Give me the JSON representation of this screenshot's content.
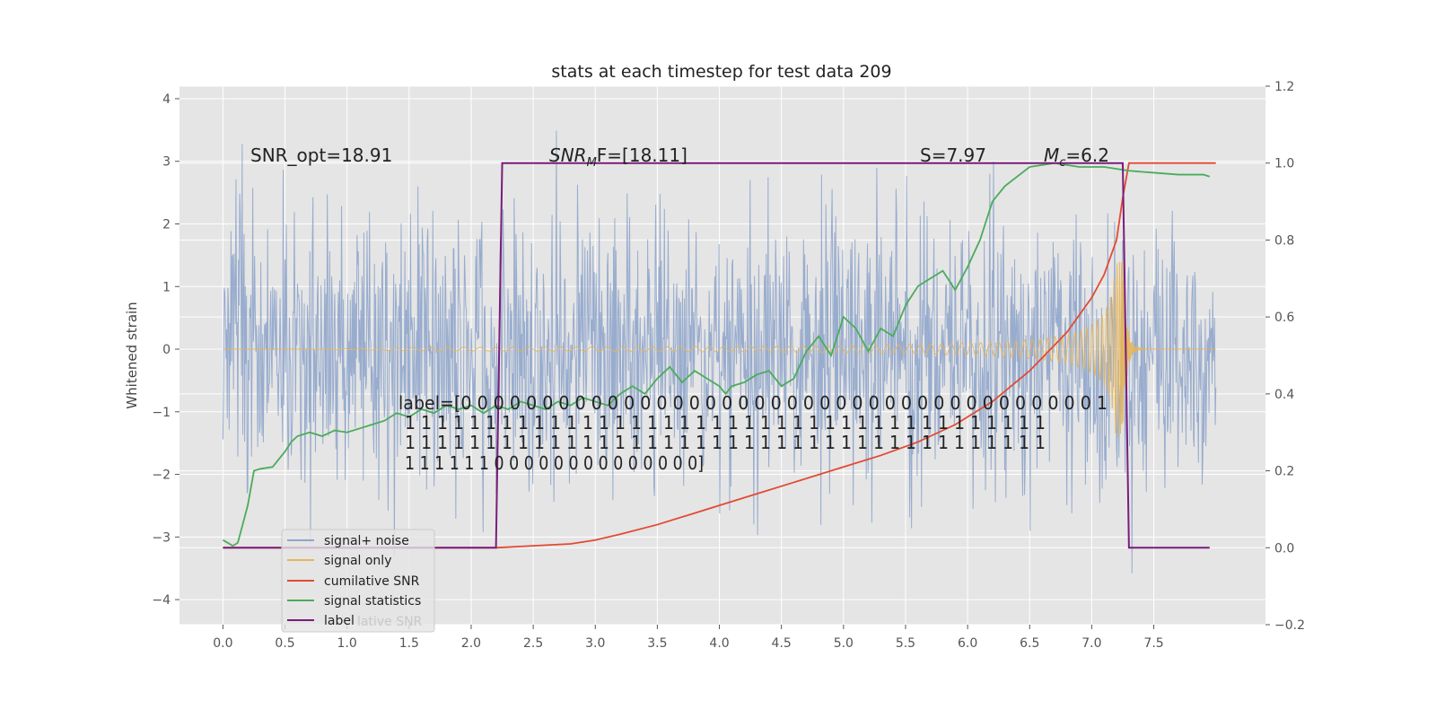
{
  "chart_data": {
    "type": "line",
    "title": "stats at each timestep for test data 209",
    "ylabel": "Whitened strain",
    "xlabel": "",
    "xlim": [
      -0.35,
      8.4
    ],
    "ylim": [
      -4.4,
      4.2
    ],
    "ylim_right": [
      -0.2,
      1.2
    ],
    "x_ticks": [
      0.0,
      0.5,
      1.0,
      1.5,
      2.0,
      2.5,
      3.0,
      3.5,
      4.0,
      4.5,
      5.0,
      5.5,
      6.0,
      6.5,
      7.0,
      7.5
    ],
    "x_tick_labels": [
      "0.0",
      "0.5",
      "1.0",
      "1.5",
      "2.0",
      "2.5",
      "3.0",
      "3.5",
      "4.0",
      "4.5",
      "5.0",
      "5.5",
      "6.0",
      "6.5",
      "7.0",
      "7.5"
    ],
    "y_ticks": [
      -4,
      -3,
      -2,
      -1,
      0,
      1,
      2,
      3,
      4
    ],
    "y_tick_labels": [
      "−4",
      "−3",
      "−2",
      "−1",
      "0",
      "1",
      "2",
      "3",
      "4"
    ],
    "y2_ticks": [
      -0.2,
      0.0,
      0.2,
      0.4,
      0.6,
      0.8,
      1.0,
      1.2
    ],
    "y2_tick_labels": [
      "−0.2",
      "0.0",
      "0.2",
      "0.4",
      "0.6",
      "0.8",
      "1.0",
      "1.2"
    ],
    "grid": true,
    "legend_position": "bottom-left",
    "series": [
      {
        "name": "signal+ noise",
        "color": "#8fa5cb",
        "kind": "noise",
        "axis": "left",
        "x_range": [
          0,
          8.0
        ],
        "std": 1.0
      },
      {
        "name": "signal only",
        "color": "#e6b55a",
        "kind": "chirp",
        "axis": "left",
        "x_range": [
          0,
          8.0
        ],
        "merger_time": 7.25,
        "peak_amplitude": 1.4
      },
      {
        "name": "cumilative SNR",
        "color": "#e24a33",
        "axis": "right",
        "x": [
          0,
          2.2,
          2.5,
          2.8,
          3.0,
          3.2,
          3.5,
          3.8,
          4.0,
          4.3,
          4.6,
          5.0,
          5.3,
          5.6,
          5.9,
          6.2,
          6.5,
          6.8,
          7.0,
          7.1,
          7.2,
          7.25,
          7.3,
          7.4,
          7.6,
          8.0
        ],
        "values": [
          0,
          0,
          0.005,
          0.01,
          0.02,
          0.035,
          0.06,
          0.09,
          0.11,
          0.14,
          0.17,
          0.21,
          0.24,
          0.275,
          0.32,
          0.38,
          0.46,
          0.56,
          0.65,
          0.71,
          0.8,
          0.91,
          1.0,
          1.0,
          1.0,
          1.0
        ]
      },
      {
        "name": "signal statistics",
        "color": "#4bab5a",
        "axis": "right",
        "x": [
          0,
          0.08,
          0.12,
          0.2,
          0.25,
          0.3,
          0.4,
          0.5,
          0.55,
          0.6,
          0.7,
          0.8,
          0.9,
          1.0,
          1.1,
          1.2,
          1.3,
          1.4,
          1.5,
          1.6,
          1.7,
          1.8,
          1.9,
          2.0,
          2.1,
          2.2,
          2.3,
          2.4,
          2.5,
          2.6,
          2.7,
          2.8,
          2.9,
          3.0,
          3.1,
          3.2,
          3.3,
          3.4,
          3.5,
          3.6,
          3.7,
          3.8,
          3.9,
          4.0,
          4.05,
          4.1,
          4.2,
          4.3,
          4.4,
          4.5,
          4.6,
          4.7,
          4.8,
          4.9,
          5.0,
          5.1,
          5.2,
          5.3,
          5.4,
          5.5,
          5.6,
          5.7,
          5.8,
          5.9,
          6.0,
          6.1,
          6.2,
          6.3,
          6.5,
          6.7,
          6.9,
          7.1,
          7.3,
          7.5,
          7.7,
          7.9,
          7.95
        ],
        "values": [
          0.02,
          0.005,
          0.013,
          0.11,
          0.2,
          0.205,
          0.21,
          0.25,
          0.275,
          0.29,
          0.3,
          0.29,
          0.305,
          0.3,
          0.31,
          0.32,
          0.33,
          0.35,
          0.34,
          0.36,
          0.35,
          0.37,
          0.36,
          0.37,
          0.35,
          0.37,
          0.36,
          0.38,
          0.37,
          0.36,
          0.38,
          0.37,
          0.39,
          0.38,
          0.37,
          0.4,
          0.42,
          0.4,
          0.44,
          0.47,
          0.43,
          0.46,
          0.44,
          0.42,
          0.4,
          0.42,
          0.43,
          0.45,
          0.46,
          0.42,
          0.44,
          0.51,
          0.55,
          0.5,
          0.6,
          0.57,
          0.51,
          0.57,
          0.55,
          0.63,
          0.68,
          0.7,
          0.72,
          0.67,
          0.73,
          0.8,
          0.9,
          0.94,
          0.99,
          1.0,
          0.99,
          0.99,
          0.98,
          0.975,
          0.97,
          0.97,
          0.965
        ]
      },
      {
        "name": "label",
        "color": "#7a1d7a",
        "axis": "right",
        "x": [
          0,
          2.2,
          2.25,
          7.25,
          7.3,
          7.95
        ],
        "values": [
          0,
          0,
          1,
          1,
          0,
          0
        ]
      }
    ],
    "annotations": [
      {
        "text": "SNR_opt=18.91"
      },
      {
        "text_main": "SNR",
        "text_sub": "M",
        "text_rest": "F=[18.11]"
      },
      {
        "text": "S=7.97"
      },
      {
        "text_main": "M",
        "text_sub": "c",
        "text_rest": "=6.2"
      }
    ],
    "label_text_lines": [
      "label=[0 0 0 0 0 0 0 0 0 0 0 0 0 0 0 0 0 0 0 0 0 0 0 0 0 0 0 0 0 0 0 0 0 0 0 0 0 0 0 1",
      "1 1 1 1 1 1 1 1 1 1 1 1 1 1 1 1 1 1 1 1 1 1 1 1 1 1 1 1 1 1 1 1 1 1 1 1 1 1 1 1",
      "1 1 1 1 1 1 1 1 1 1 1 1 1 1 1 1 1 1 1 1 1 1 1 1 1 1 1 1 1 1 1 1 1 1 1 1 1 1 1 1",
      "1 1 1 1 1 1 0 0 0 0 0 0 0 0 0 0 0 0 0 0]"
    ],
    "legend_ghost_text": "lative SNR"
  }
}
